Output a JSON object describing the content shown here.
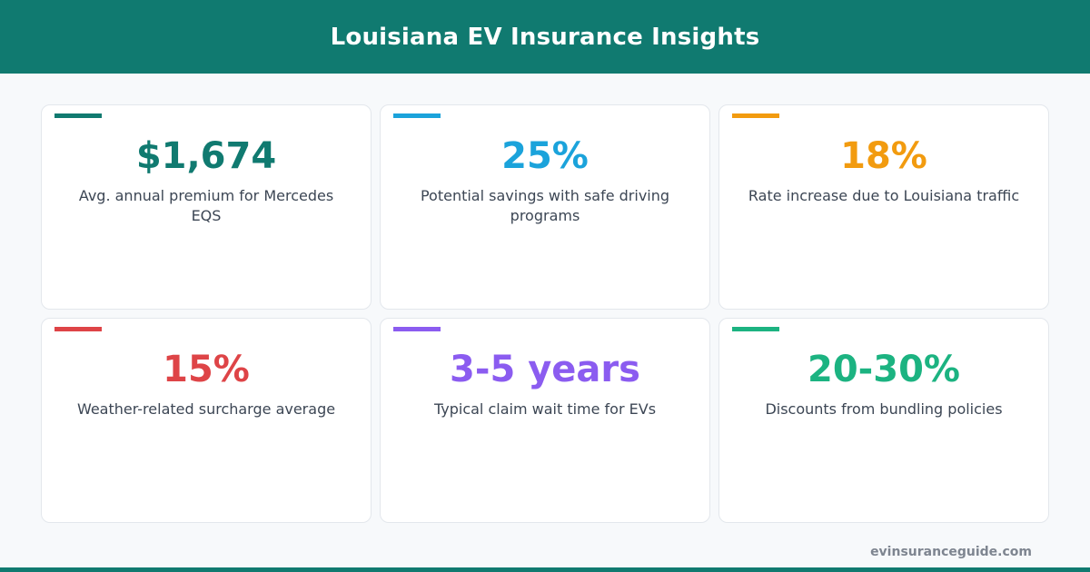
{
  "header": {
    "title": "Louisiana EV Insurance Insights"
  },
  "colors": {
    "header_background": "#107a70",
    "footer_bar": "#107a70"
  },
  "cards": [
    {
      "value": "$1,674",
      "label": "Avg. annual premium for Mercedes EQS",
      "color": "#107a70"
    },
    {
      "value": "25%",
      "label": "Potential savings with safe driving programs",
      "color": "#1ba3db"
    },
    {
      "value": "18%",
      "label": "Rate increase due to Louisiana traffic",
      "color": "#f29b0f"
    },
    {
      "value": "15%",
      "label": "Weather-related surcharge average",
      "color": "#de4447"
    },
    {
      "value": "3-5 years",
      "label": "Typical claim wait time for EVs",
      "color": "#8b5cf0"
    },
    {
      "value": "20-30%",
      "label": "Discounts from bundling policies",
      "color": "#1cb381"
    }
  ],
  "footer": {
    "url": "evinsuranceguide.com"
  }
}
